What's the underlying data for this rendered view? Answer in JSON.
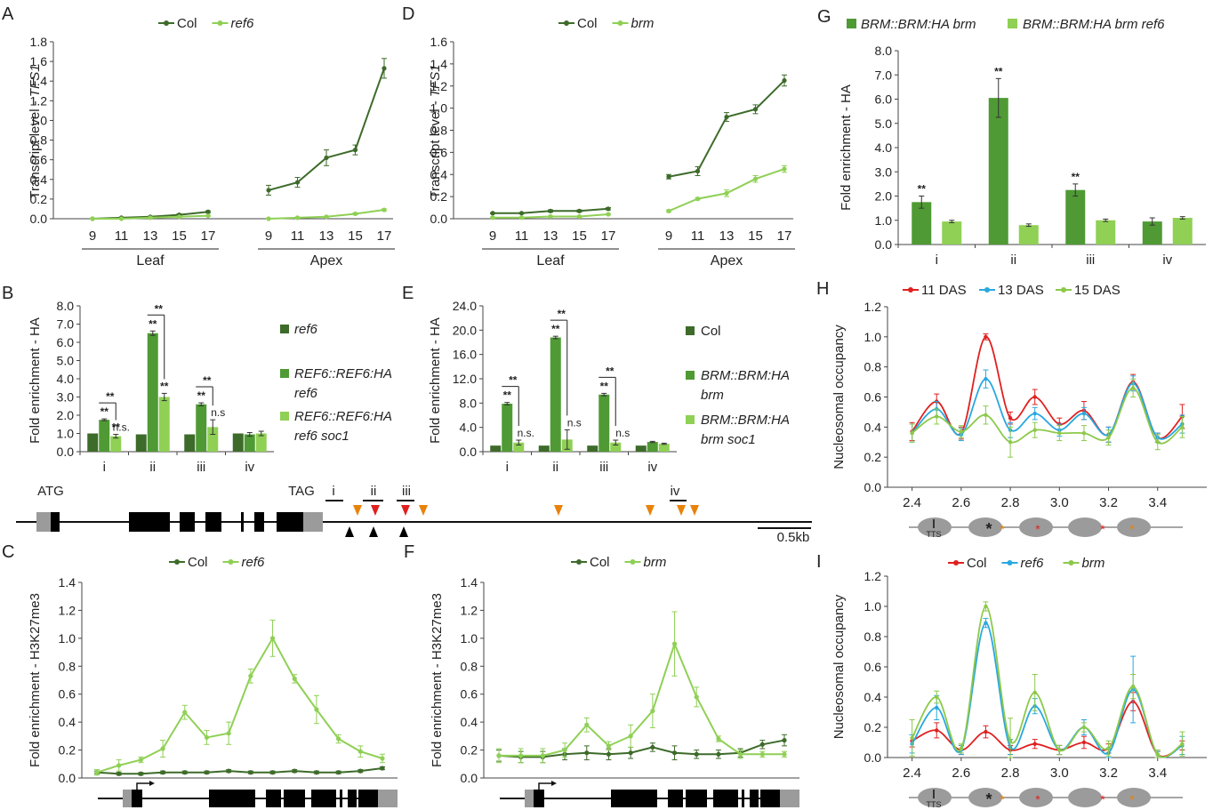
{
  "colors": {
    "dark": "#3d6b2a",
    "mid": "#4f9a34",
    "light": "#8fd055",
    "red": "#e02020",
    "blue": "#29a8e0",
    "green": "#8cc94a",
    "orange": "#e8820a",
    "gray": "#9b9b9b"
  },
  "panels": {
    "A": {
      "letter": "A",
      "legend": [
        "Col",
        "ref6"
      ],
      "ylabel": "Transcript level - TFS1",
      "groups": [
        "Leaf",
        "Apex"
      ]
    },
    "B": {
      "letter": "B",
      "ylabel": "Fold enrichment - HA",
      "categories": [
        "i",
        "ii",
        "iii",
        "iv"
      ],
      "legend": [
        "ref6",
        "REF6::REF6:HA\nref6",
        "REF6::REF6:HA\nref6 soc1"
      ],
      "sig": "**",
      "ns": "n.s.",
      "ns2": "n.s"
    },
    "C": {
      "letter": "C",
      "legend": [
        "Col",
        "ref6"
      ],
      "ylabel": "Fold enrichment - H3K27me3"
    },
    "D": {
      "letter": "D",
      "legend": [
        "Col",
        "brm"
      ],
      "ylabel": "Transcript level - TFS1",
      "groups": [
        "Leaf",
        "Apex"
      ]
    },
    "E": {
      "letter": "E",
      "ylabel": "Fold enrichment - HA",
      "categories": [
        "i",
        "ii",
        "iii",
        "iv"
      ],
      "legend": [
        "Col",
        "BRM::BRM:HA\nbrm",
        "BRM::BRM:HA\nbrm soc1"
      ],
      "sig": "**",
      "ns": "n.s.",
      "ns2": "n.s"
    },
    "F": {
      "letter": "F",
      "legend": [
        "Col",
        "brm"
      ],
      "ylabel": "Fold enrichment - H3K27me3"
    },
    "G": {
      "letter": "G",
      "legend": [
        "BRM::BRM:HA brm",
        "BRM::BRM:HA brm ref6"
      ],
      "ylabel": "Fold enrichment - HA",
      "categories": [
        "i",
        "ii",
        "iii",
        "iv"
      ],
      "sig": "**"
    },
    "H": {
      "letter": "H",
      "legend": [
        "11 DAS",
        "13 DAS",
        "15 DAS"
      ],
      "ylabel": "Nucleosomal occupancy",
      "tts": "TTS",
      "star": "*"
    },
    "I": {
      "letter": "I",
      "legend": [
        "Col",
        "ref6",
        "brm"
      ],
      "ylabel": "Nucleosomal occupancy",
      "tts": "TTS",
      "star": "*"
    }
  },
  "gene_map": {
    "atg": "ATG",
    "tag": "TAG",
    "regions": [
      "i",
      "ii",
      "iii",
      "iv"
    ],
    "scale": "0.5kb"
  },
  "chart_data": [
    {
      "panel": "A",
      "type": "line",
      "xlabel": "",
      "ylabel": "Transcript level - TFS1",
      "ylim": [
        0,
        1.8
      ],
      "yticks": [
        0,
        0.2,
        0.4,
        0.6,
        0.8,
        1.0,
        1.2,
        1.4,
        1.6,
        1.8
      ],
      "ytick_labels": [
        "0.0",
        "0.2",
        "0.4",
        "0.6",
        "0.8",
        "1.0",
        "1.2",
        "1.4",
        "1.6",
        "1.8"
      ],
      "groups": [
        "Leaf",
        "Apex"
      ],
      "x": [
        9,
        11,
        13,
        15,
        17
      ],
      "series": [
        {
          "name": "Col",
          "group_values": [
            [
              0.0,
              0.01,
              0.02,
              0.04,
              0.07
            ],
            [
              0.29,
              0.37,
              0.62,
              0.7,
              1.53
            ]
          ],
          "errors": [
            [
              0.005,
              0.005,
              0.005,
              0.01,
              0.01
            ],
            [
              0.05,
              0.05,
              0.08,
              0.05,
              0.1
            ]
          ]
        },
        {
          "name": "ref6",
          "group_values": [
            [
              0.0,
              0.0,
              0.01,
              0.02,
              0.03
            ],
            [
              0.0,
              0.01,
              0.02,
              0.05,
              0.09
            ]
          ],
          "errors": [
            [
              0.005,
              0.005,
              0.005,
              0.005,
              0.005
            ],
            [
              0.005,
              0.005,
              0.005,
              0.01,
              0.01
            ]
          ]
        }
      ]
    },
    {
      "panel": "D",
      "type": "line",
      "xlabel": "",
      "ylabel": "Transcript level - TFS1",
      "ylim": [
        0,
        1.6
      ],
      "yticks": [
        0,
        0.2,
        0.4,
        0.6,
        0.8,
        1.0,
        1.2,
        1.4,
        1.6
      ],
      "ytick_labels": [
        "0.0",
        "0.2",
        "0.4",
        "0.6",
        "0.8",
        "1.0",
        "1.2",
        "1.4",
        "1.6"
      ],
      "groups": [
        "Leaf",
        "Apex"
      ],
      "x": [
        9,
        11,
        13,
        15,
        17
      ],
      "series": [
        {
          "name": "Col",
          "group_values": [
            [
              0.05,
              0.05,
              0.07,
              0.07,
              0.09
            ],
            [
              0.38,
              0.43,
              0.92,
              0.99,
              1.25
            ]
          ],
          "errors": [
            [
              0.005,
              0.005,
              0.01,
              0.01,
              0.01
            ],
            [
              0.02,
              0.04,
              0.04,
              0.04,
              0.05
            ]
          ]
        },
        {
          "name": "brm",
          "group_values": [
            [
              0.01,
              0.01,
              0.02,
              0.02,
              0.04
            ],
            [
              0.07,
              0.18,
              0.23,
              0.36,
              0.45
            ]
          ],
          "errors": [
            [
              0.005,
              0.005,
              0.005,
              0.005,
              0.005
            ],
            [
              0.01,
              0.01,
              0.03,
              0.03,
              0.03
            ]
          ]
        }
      ]
    },
    {
      "panel": "B",
      "type": "bar",
      "ylabel": "Fold enrichment - HA",
      "ylim": [
        0,
        8
      ],
      "yticks": [
        0,
        1,
        2,
        3,
        4,
        5,
        6,
        7,
        8
      ],
      "ytick_labels": [
        "0.0",
        "1.0",
        "2.0",
        "3.0",
        "4.0",
        "5.0",
        "6.0",
        "7.0",
        "8.0"
      ],
      "categories": [
        "i",
        "ii",
        "iii",
        "iv"
      ],
      "series": [
        {
          "name": "ref6",
          "values": [
            1.0,
            0.95,
            0.95,
            1.0
          ],
          "errors": [
            0,
            0,
            0,
            0
          ]
        },
        {
          "name": "REF6::REF6:HA ref6",
          "values": [
            1.75,
            6.5,
            2.6,
            0.95
          ],
          "errors": [
            0.05,
            0.12,
            0.08,
            0.1
          ]
        },
        {
          "name": "REF6::REF6:HA ref6 soc1",
          "values": [
            0.85,
            3.0,
            1.35,
            1.0
          ],
          "errors": [
            0.1,
            0.2,
            0.4,
            0.12
          ]
        }
      ]
    },
    {
      "panel": "E",
      "type": "bar",
      "ylabel": "Fold enrichment - HA",
      "ylim": [
        0,
        24
      ],
      "yticks": [
        0,
        4,
        8,
        12,
        16,
        20,
        24
      ],
      "ytick_labels": [
        "0.0",
        "4.0",
        "8.0",
        "12.0",
        "16.0",
        "20.0",
        "24.0"
      ],
      "categories": [
        "i",
        "ii",
        "iii",
        "iv"
      ],
      "series": [
        {
          "name": "Col",
          "values": [
            1.0,
            1.0,
            1.0,
            1.0
          ],
          "errors": [
            0,
            0,
            0,
            0
          ]
        },
        {
          "name": "BRM::BRM:HA brm",
          "values": [
            7.9,
            18.8,
            9.4,
            1.6
          ],
          "errors": [
            0.2,
            0.2,
            0.2,
            0.1
          ]
        },
        {
          "name": "BRM::BRM:HA brm soc1",
          "values": [
            1.5,
            2.0,
            1.5,
            1.3
          ],
          "errors": [
            0.4,
            1.6,
            0.4,
            0.1
          ]
        }
      ]
    },
    {
      "panel": "G",
      "type": "bar",
      "ylabel": "Fold enrichment - HA",
      "ylim": [
        0,
        8
      ],
      "yticks": [
        0,
        1,
        2,
        3,
        4,
        5,
        6,
        7,
        8
      ],
      "ytick_labels": [
        "0.0",
        "1.0",
        "2.0",
        "3.0",
        "4.0",
        "5.0",
        "6.0",
        "7.0",
        "8.0"
      ],
      "categories": [
        "i",
        "ii",
        "iii",
        "iv"
      ],
      "series": [
        {
          "name": "BRM::BRM:HA brm",
          "values": [
            1.75,
            6.05,
            2.25,
            0.95
          ],
          "errors": [
            0.25,
            0.8,
            0.25,
            0.15
          ]
        },
        {
          "name": "BRM::BRM:HA brm ref6",
          "values": [
            0.95,
            0.8,
            1.0,
            1.1
          ],
          "errors": [
            0.05,
            0.05,
            0.05,
            0.05
          ]
        }
      ]
    },
    {
      "panel": "C",
      "type": "line",
      "ylabel": "Fold enrichment - H3K27me3",
      "ylim": [
        0,
        1.4
      ],
      "yticks": [
        0,
        0.2,
        0.4,
        0.6,
        0.8,
        1.0,
        1.2,
        1.4
      ],
      "ytick_labels": [
        "0.0",
        "0.2",
        "0.4",
        "0.6",
        "0.8",
        "1.0",
        "1.2",
        "1.4"
      ],
      "n_points": 14,
      "series": [
        {
          "name": "Col",
          "values": [
            0.04,
            0.03,
            0.03,
            0.04,
            0.04,
            0.04,
            0.05,
            0.04,
            0.04,
            0.05,
            0.04,
            0.04,
            0.05,
            0.07
          ],
          "errors": [
            0.01,
            0.01,
            0.01,
            0.01,
            0.01,
            0.01,
            0.01,
            0.01,
            0.01,
            0.01,
            0.01,
            0.01,
            0.01,
            0.01
          ]
        },
        {
          "name": "ref6",
          "values": [
            0.04,
            0.09,
            0.13,
            0.21,
            0.47,
            0.29,
            0.32,
            0.73,
            1.0,
            0.71,
            0.49,
            0.28,
            0.19,
            0.14
          ],
          "errors": [
            0.02,
            0.04,
            0.02,
            0.06,
            0.05,
            0.05,
            0.08,
            0.05,
            0.13,
            0.03,
            0.1,
            0.03,
            0.04,
            0.03
          ]
        }
      ]
    },
    {
      "panel": "F",
      "type": "line",
      "ylabel": "Fold enrichment - H3K27me3",
      "ylim": [
        0,
        1.4
      ],
      "yticks": [
        0,
        0.2,
        0.4,
        0.6,
        0.8,
        1.0,
        1.2,
        1.4
      ],
      "ytick_labels": [
        "0.0",
        "0.2",
        "0.4",
        "0.6",
        "0.8",
        "1.0",
        "1.2",
        "1.4"
      ],
      "n_points": 14,
      "series": [
        {
          "name": "Col",
          "values": [
            0.16,
            0.15,
            0.15,
            0.17,
            0.18,
            0.17,
            0.18,
            0.22,
            0.18,
            0.17,
            0.17,
            0.18,
            0.24,
            0.27
          ],
          "errors": [
            0.04,
            0.04,
            0.04,
            0.04,
            0.05,
            0.04,
            0.04,
            0.03,
            0.05,
            0.03,
            0.03,
            0.03,
            0.03,
            0.04
          ]
        },
        {
          "name": "brm",
          "values": [
            0.16,
            0.16,
            0.16,
            0.2,
            0.38,
            0.23,
            0.3,
            0.48,
            0.96,
            0.58,
            0.28,
            0.17,
            0.17,
            0.17
          ],
          "errors": [
            0.05,
            0.05,
            0.05,
            0.05,
            0.05,
            0.03,
            0.08,
            0.12,
            0.23,
            0.07,
            0.02,
            0.03,
            0.02,
            0.02
          ]
        }
      ]
    },
    {
      "panel": "H",
      "type": "line",
      "ylabel": "Nucleosomal occupancy",
      "ylim": [
        0,
        1.2
      ],
      "yticks": [
        0,
        0.2,
        0.4,
        0.6,
        0.8,
        1.0,
        1.2
      ],
      "ytick_labels": [
        "0.0",
        "0.2",
        "0.4",
        "0.6",
        "0.8",
        "1.0",
        "1.2"
      ],
      "xlim": [
        2.3,
        3.6
      ],
      "xticks": [
        2.4,
        2.6,
        2.8,
        3.0,
        3.2,
        3.4
      ],
      "xtick_labels": [
        "2.4",
        "2.6",
        "2.8",
        "3.0",
        "3.2",
        "3.4"
      ],
      "x": [
        2.4,
        2.5,
        2.6,
        2.7,
        2.8,
        2.9,
        3.0,
        3.1,
        3.2,
        3.3,
        3.4,
        3.5
      ],
      "series": [
        {
          "name": "11 DAS",
          "values": [
            0.37,
            0.57,
            0.36,
            1.0,
            0.46,
            0.6,
            0.42,
            0.51,
            0.35,
            0.7,
            0.33,
            0.47
          ],
          "errors": [
            0.06,
            0.05,
            0.04,
            0.02,
            0.04,
            0.05,
            0.04,
            0.06,
            0.05,
            0.05,
            0.03,
            0.08
          ]
        },
        {
          "name": "13 DAS",
          "values": [
            0.36,
            0.52,
            0.35,
            0.72,
            0.38,
            0.49,
            0.38,
            0.49,
            0.35,
            0.69,
            0.33,
            0.42
          ],
          "errors": [
            0.06,
            0.05,
            0.04,
            0.06,
            0.05,
            0.04,
            0.04,
            0.04,
            0.05,
            0.05,
            0.03,
            0.06
          ]
        },
        {
          "name": "15 DAS",
          "values": [
            0.36,
            0.47,
            0.37,
            0.48,
            0.3,
            0.38,
            0.36,
            0.36,
            0.33,
            0.66,
            0.3,
            0.4
          ],
          "errors": [
            0.06,
            0.05,
            0.04,
            0.06,
            0.1,
            0.05,
            0.05,
            0.05,
            0.05,
            0.06,
            0.05,
            0.07
          ]
        }
      ]
    },
    {
      "panel": "I",
      "type": "line",
      "ylabel": "Nucleosomal occupancy",
      "ylim": [
        0,
        1.2
      ],
      "yticks": [
        0,
        0.2,
        0.4,
        0.6,
        0.8,
        1.0,
        1.2
      ],
      "ytick_labels": [
        "0.0",
        "0.2",
        "0.4",
        "0.6",
        "0.8",
        "1.0",
        "1.2"
      ],
      "xlim": [
        2.3,
        3.6
      ],
      "xticks": [
        2.4,
        2.6,
        2.8,
        3.0,
        3.2,
        3.4
      ],
      "xtick_labels": [
        "2.4",
        "2.6",
        "2.8",
        "3.0",
        "3.2",
        "3.4"
      ],
      "x": [
        2.4,
        2.5,
        2.6,
        2.7,
        2.8,
        2.9,
        3.0,
        3.1,
        3.2,
        3.3,
        3.4,
        3.5
      ],
      "series": [
        {
          "name": "Col",
          "values": [
            0.11,
            0.18,
            0.05,
            0.17,
            0.05,
            0.09,
            0.05,
            0.1,
            0.06,
            0.37,
            0.02,
            0.08
          ],
          "errors": [
            0.04,
            0.05,
            0.03,
            0.04,
            0.03,
            0.03,
            0.03,
            0.04,
            0.03,
            0.06,
            0.02,
            0.03
          ]
        },
        {
          "name": "ref6",
          "values": [
            0.09,
            0.33,
            0.05,
            0.89,
            0.07,
            0.34,
            0.05,
            0.2,
            0.03,
            0.45,
            0.02,
            0.08
          ],
          "errors": [
            0.06,
            0.08,
            0.03,
            0.03,
            0.05,
            0.05,
            0.03,
            0.05,
            0.03,
            0.22,
            0.02,
            0.06
          ]
        },
        {
          "name": "brm",
          "values": [
            0.13,
            0.4,
            0.06,
            1.0,
            0.11,
            0.43,
            0.05,
            0.2,
            0.06,
            0.47,
            0.02,
            0.09
          ],
          "errors": [
            0.12,
            0.04,
            0.03,
            0.03,
            0.15,
            0.12,
            0.03,
            0.03,
            0.05,
            0.08,
            0.03,
            0.08
          ]
        }
      ]
    }
  ]
}
